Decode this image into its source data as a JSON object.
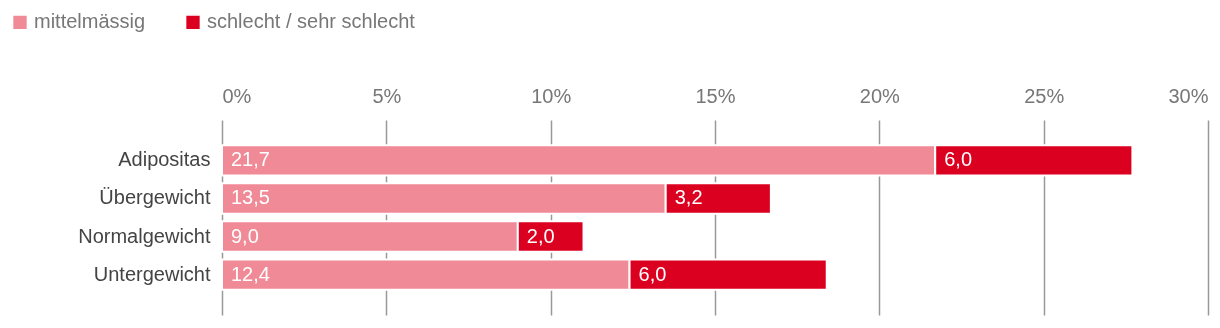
{
  "chart_data": {
    "type": "bar",
    "orientation": "horizontal",
    "stacked": true,
    "categories": [
      "Adipositas",
      "Übergewicht",
      "Normalgewicht",
      "Untergewicht"
    ],
    "series": [
      {
        "name": "mittelmässig",
        "color": "#f08a96",
        "values": [
          21.7,
          13.5,
          9.0,
          12.4
        ],
        "value_labels": [
          "21,7",
          "13,5",
          "9,0",
          "12,4"
        ]
      },
      {
        "name": "schlecht / sehr schlecht",
        "color": "#dc0020",
        "values": [
          6.0,
          3.2,
          2.0,
          6.0
        ],
        "value_labels": [
          "6,0",
          "3,2",
          "2,0",
          "6,0"
        ]
      }
    ],
    "xlim": [
      0,
      30
    ],
    "xticks": [
      {
        "value": 0,
        "label": "0%"
      },
      {
        "value": 5,
        "label": "5%"
      },
      {
        "value": 10,
        "label": "10%"
      },
      {
        "value": 15,
        "label": "15%"
      },
      {
        "value": 20,
        "label": "20%"
      },
      {
        "value": 25,
        "label": "25%"
      },
      {
        "value": 30,
        "label": "30%"
      }
    ],
    "grid": true,
    "legend": "top left"
  }
}
